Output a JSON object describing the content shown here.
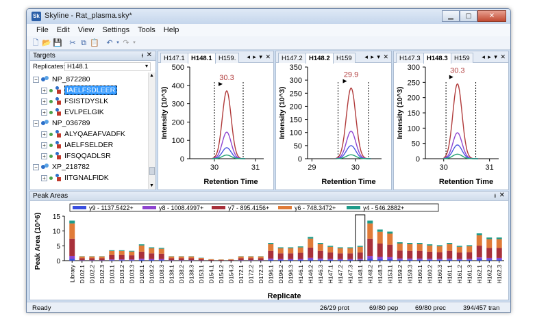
{
  "window": {
    "title": "Skyline - Rat_plasma.sky*",
    "app_icon": "skyline-logo-icon"
  },
  "menu": [
    "File",
    "Edit",
    "View",
    "Settings",
    "Tools",
    "Help"
  ],
  "toolbar_icons": [
    "new-icon",
    "open-icon",
    "save-icon",
    "cut-icon",
    "copy-icon",
    "paste-icon",
    "undo-icon",
    "undo-dropdown-icon",
    "redo-icon",
    "redo-dropdown-icon"
  ],
  "targets": {
    "title": "Targets",
    "replicates_label": "Replicates:",
    "replicates_value": "H148.1",
    "tree": [
      {
        "type": "protein",
        "label": "NP_872280"
      },
      {
        "type": "peptide",
        "label": "IAELFSDLEER",
        "selected": true
      },
      {
        "type": "peptide",
        "label": "FSISTDYSLK"
      },
      {
        "type": "peptide",
        "label": "EVLPELGIK"
      },
      {
        "type": "protein",
        "label": "NP_036789"
      },
      {
        "type": "peptide",
        "label": "ALYQAEAFVADFK"
      },
      {
        "type": "peptide",
        "label": "IAELFSELDER"
      },
      {
        "type": "peptide",
        "label": "IFSQQADLSR"
      },
      {
        "type": "protein",
        "label": "XP_218782"
      },
      {
        "type": "peptide",
        "label": "IITGNALFIDK"
      }
    ]
  },
  "chrom_panels": [
    {
      "tabs": [
        "H147.1",
        "H148.1",
        "H159."
      ],
      "active_tab": "H148.1",
      "controls": "◂ ▸ ▾ ✕",
      "peak_label": "30.3",
      "chart_data": {
        "type": "line",
        "xlabel": "Retention Time",
        "ylabel": "Intensity (10^3)",
        "xlim": [
          29.4,
          31.2
        ],
        "ylim": [
          0,
          500
        ],
        "xticks": [
          30,
          31
        ],
        "yticks": [
          0,
          100,
          200,
          300,
          400,
          500
        ],
        "boundaries": [
          30.0,
          30.7
        ],
        "apex": 30.3,
        "series": [
          {
            "color": "#b03a3a",
            "height": 370
          },
          {
            "color": "#8e44d0",
            "height": 145
          },
          {
            "color": "#4a55e0",
            "height": 60
          },
          {
            "color": "#20a070",
            "height": 20
          }
        ]
      }
    },
    {
      "tabs": [
        "H147.2",
        "H148.2",
        "H159"
      ],
      "active_tab": "H148.2",
      "controls": "◂ ▸ ▾ ✕",
      "peak_label": "29.9",
      "chart_data": {
        "type": "line",
        "xlabel": "Retention Time",
        "ylabel": "Intensity (10^3)",
        "xlim": [
          28.9,
          30.6
        ],
        "ylim": [
          0,
          350
        ],
        "xticks": [
          29,
          30
        ],
        "yticks": [
          0,
          50,
          100,
          150,
          200,
          250,
          300,
          350
        ],
        "boundaries": [
          29.6,
          30.3
        ],
        "apex": 29.9,
        "series": [
          {
            "color": "#b03a3a",
            "height": 270
          },
          {
            "color": "#8e44d0",
            "height": 105
          },
          {
            "color": "#4a55e0",
            "height": 50
          },
          {
            "color": "#20a070",
            "height": 15
          }
        ]
      }
    },
    {
      "tabs": [
        "H147.3",
        "H148.3",
        "H159"
      ],
      "active_tab": "H148.3",
      "controls": "◂ ▸ ▾ ✕",
      "peak_label": "30.3",
      "chart_data": {
        "type": "line",
        "xlabel": "Retention Time",
        "ylabel": "Intensity (10^3)",
        "xlim": [
          29.6,
          31.2
        ],
        "ylim": [
          0,
          300
        ],
        "xticks": [
          30,
          31
        ],
        "yticks": [
          0,
          50,
          100,
          150,
          200,
          250,
          300
        ],
        "boundaries": [
          30.05,
          30.7
        ],
        "apex": 30.3,
        "series": [
          {
            "color": "#b03a3a",
            "height": 245
          },
          {
            "color": "#8e44d0",
            "height": 85
          },
          {
            "color": "#4a55e0",
            "height": 45
          },
          {
            "color": "#20a070",
            "height": 15
          }
        ]
      }
    }
  ],
  "peak_areas": {
    "title": "Peak Areas",
    "controls": "ᵻ ✕",
    "chart_data": {
      "type": "bar",
      "xlabel": "Replicate",
      "ylabel": "Peak Area (10^6)",
      "ylim": [
        0,
        15
      ],
      "yticks": [
        0,
        5,
        10,
        15
      ],
      "legend": [
        {
          "name": "y9 - 1137.5422+",
          "color": "#3a4fe0"
        },
        {
          "name": "y8 - 1008.4997+",
          "color": "#8e44d0"
        },
        {
          "name": "y7 - 895.4156+",
          "color": "#a8303a"
        },
        {
          "name": "y6 - 748.3472+",
          "color": "#e07b38"
        },
        {
          "name": "y4 - 546.2882+",
          "color": "#1e9b8a"
        }
      ],
      "categories": [
        "Library",
        "D102.1",
        "D102.2",
        "D102.3",
        "D103.1",
        "D103.2",
        "D103.3",
        "D108.1",
        "D108.2",
        "D108.3",
        "D138.1",
        "D138.2",
        "D138.3",
        "D153.1",
        "D154.1",
        "D154.2",
        "D154.3",
        "D172.1",
        "D172.2",
        "D172.3",
        "D196.1",
        "D196.2",
        "D196.3",
        "H146.1",
        "H146.2",
        "H146.3",
        "H147.1",
        "H147.2",
        "H147.3",
        "H148.1",
        "H148.2",
        "H148.3",
        "H153.1",
        "H159.2",
        "H159.3",
        "H160.1",
        "H160.2",
        "H160.3",
        "H161.1",
        "H161.2",
        "H161.3",
        "H162.1",
        "H162.2",
        "H162.3"
      ],
      "totals": [
        13.5,
        1.5,
        1.5,
        1.5,
        3.5,
        3.5,
        3.3,
        5.5,
        4.5,
        4.3,
        1.5,
        1.5,
        1.5,
        1.0,
        0.5,
        0.4,
        0.5,
        1.5,
        1.5,
        1.5,
        6.0,
        4.5,
        4.5,
        4.8,
        8.0,
        6.0,
        5.0,
        4.5,
        4.5,
        5.0,
        13.5,
        10.5,
        9.8,
        6.2,
        6.0,
        6.0,
        5.5,
        5.2,
        6.0,
        5.0,
        5.2,
        9.2,
        7.8,
        7.8
      ],
      "fractions": [
        0.05,
        0.07,
        0.43,
        0.38,
        0.07
      ],
      "selected_index": 29
    }
  },
  "status": {
    "ready": "Ready",
    "prot": "26/29 prot",
    "pep": "69/80 pep",
    "prec": "69/80 prec",
    "tran": "394/457 tran"
  }
}
